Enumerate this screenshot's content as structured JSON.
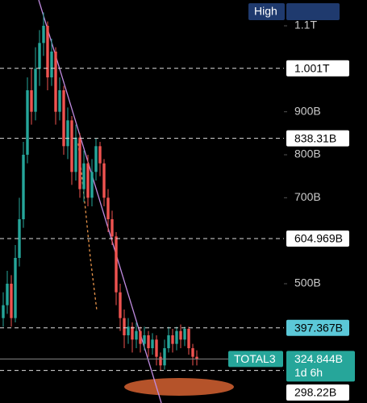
{
  "chart_data": {
    "type": "candlestick",
    "symbol": "TOTAL3",
    "countdown": "1d 6h",
    "high_label": "High",
    "high": [
      480,
      530,
      520,
      590,
      700,
      830,
      980,
      1000,
      1050,
      1090,
      1131,
      1110,
      1070,
      1050,
      980,
      960,
      910,
      890,
      870,
      850,
      810,
      800,
      790,
      838.31,
      830,
      790,
      720,
      670,
      620,
      500,
      440,
      420,
      410,
      410,
      400,
      400,
      390,
      385,
      380,
      340,
      370,
      400,
      395,
      400,
      405,
      400,
      400,
      360,
      345
    ],
    "last": {
      "value": 324.844,
      "label": "324.844B"
    },
    "ylim": [
      222.5,
      1160
    ],
    "yticks": [
      {
        "value": 1100,
        "label": "1.1T"
      },
      {
        "value": 900,
        "label": "900B"
      },
      {
        "value": 800,
        "label": "800B"
      },
      {
        "value": 700,
        "label": "700B"
      },
      {
        "value": 500,
        "label": "500B"
      }
    ],
    "levels": [
      {
        "value": 1001,
        "label": "1.001T"
      },
      {
        "value": 838.31,
        "label": "838.31B"
      },
      {
        "value": 604.969,
        "label": "604.969B"
      },
      {
        "value": 397.367,
        "label": "397.367B"
      },
      {
        "value": 298.22,
        "label": "298.22B"
      }
    ],
    "up_color": "#26a69a",
    "down_color": "#ef5350",
    "open": [
      420,
      450,
      500,
      420,
      560,
      650,
      800,
      950,
      900,
      1000,
      1060,
      1100,
      980,
      1040,
      900,
      950,
      820,
      880,
      760,
      840,
      720,
      780,
      700,
      760,
      820,
      780,
      700,
      650,
      610,
      480,
      420,
      380,
      400,
      370,
      390,
      360,
      380,
      350,
      370,
      330,
      310,
      350,
      380,
      360,
      390,
      370,
      395,
      350,
      330
    ],
    "low": [
      400,
      430,
      400,
      410,
      540,
      630,
      780,
      870,
      880,
      960,
      1030,
      950,
      960,
      870,
      880,
      800,
      790,
      730,
      740,
      700,
      690,
      680,
      680,
      740,
      750,
      680,
      620,
      590,
      450,
      390,
      350,
      360,
      340,
      350,
      340,
      345,
      330,
      335,
      310,
      298.22,
      300,
      340,
      340,
      345,
      350,
      355,
      335,
      310,
      310
    ],
    "close": [
      450,
      500,
      420,
      560,
      650,
      800,
      950,
      900,
      1000,
      1060,
      1100,
      980,
      1040,
      900,
      950,
      820,
      880,
      760,
      840,
      720,
      780,
      700,
      760,
      820,
      780,
      700,
      650,
      610,
      480,
      420,
      380,
      400,
      370,
      390,
      360,
      380,
      350,
      370,
      330,
      310,
      350,
      380,
      360,
      390,
      370,
      395,
      350,
      330,
      324.844
    ]
  }
}
